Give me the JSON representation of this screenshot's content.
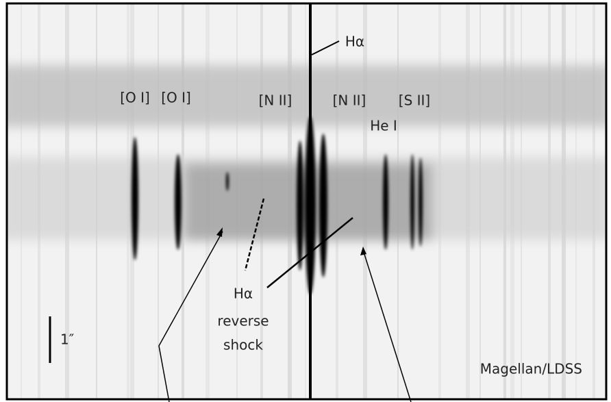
{
  "labels": {
    "h_alpha": "Hα",
    "o_i_left": "[O I]",
    "o_i_right": "[O I]",
    "n_ii_left": "[N II]",
    "n_ii_right": "[N II]",
    "s_ii": "[S II]",
    "he_i": "He I"
  },
  "annotation": {
    "lines": [
      "Hα",
      "reverse",
      "shock"
    ]
  },
  "scale_bar": "1″",
  "instrument": "Magellan/LDSS"
}
